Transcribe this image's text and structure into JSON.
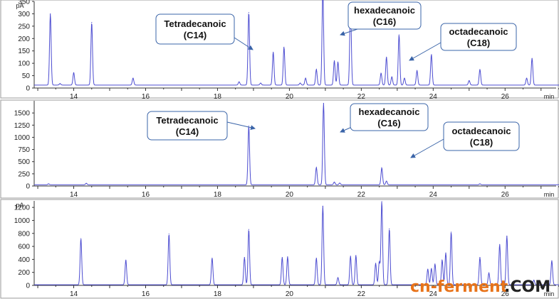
{
  "chart_data": [
    {
      "type": "line",
      "title": "",
      "xlabel": "min",
      "ylabel": "pA",
      "xlim": [
        12.9,
        27.5
      ],
      "ylim": [
        0,
        350
      ],
      "x_ticks": [
        14,
        16,
        18,
        20,
        22,
        24,
        26
      ],
      "y_ticks": [
        0,
        50,
        100,
        150,
        200,
        250,
        300,
        350
      ],
      "baseline": 12,
      "peaks": [
        {
          "rt": 13.35,
          "height": 300
        },
        {
          "rt": 13.62,
          "height": 18
        },
        {
          "rt": 14.0,
          "height": 62
        },
        {
          "rt": 14.5,
          "height": 265
        },
        {
          "rt": 15.65,
          "height": 40
        },
        {
          "rt": 18.6,
          "height": 25
        },
        {
          "rt": 18.87,
          "height": 305
        },
        {
          "rt": 19.2,
          "height": 20
        },
        {
          "rt": 19.55,
          "height": 145
        },
        {
          "rt": 19.85,
          "height": 165
        },
        {
          "rt": 20.3,
          "height": 20
        },
        {
          "rt": 20.45,
          "height": 40
        },
        {
          "rt": 20.75,
          "height": 75
        },
        {
          "rt": 20.93,
          "height": 395
        },
        {
          "rt": 21.25,
          "height": 110
        },
        {
          "rt": 21.35,
          "height": 105
        },
        {
          "rt": 21.7,
          "height": 340
        },
        {
          "rt": 22.55,
          "height": 60
        },
        {
          "rt": 22.7,
          "height": 125
        },
        {
          "rt": 22.85,
          "height": 45
        },
        {
          "rt": 23.05,
          "height": 215
        },
        {
          "rt": 23.2,
          "height": 40
        },
        {
          "rt": 23.55,
          "height": 70
        },
        {
          "rt": 23.95,
          "height": 135
        },
        {
          "rt": 25.0,
          "height": 30
        },
        {
          "rt": 25.3,
          "height": 75
        },
        {
          "rt": 26.6,
          "height": 40
        },
        {
          "rt": 26.75,
          "height": 120
        }
      ],
      "annotations": [
        {
          "line1": "Tetradecanoic",
          "line2": "(C14)"
        },
        {
          "line1": "hexadecanoic",
          "line2": "(C16)"
        },
        {
          "line1": "octadecanoic",
          "line2": "(C18)"
        }
      ]
    },
    {
      "type": "line",
      "title": "",
      "xlabel": "min",
      "ylabel": "",
      "xlim": [
        12.9,
        27.5
      ],
      "ylim": [
        0,
        1750
      ],
      "x_ticks": [
        14,
        16,
        18,
        20,
        22,
        24,
        26
      ],
      "y_ticks": [
        0,
        250,
        500,
        750,
        1000,
        1250,
        1500
      ],
      "baseline": 25,
      "peaks": [
        {
          "rt": 13.3,
          "height": 45
        },
        {
          "rt": 14.35,
          "height": 55
        },
        {
          "rt": 18.87,
          "height": 1230
        },
        {
          "rt": 20.75,
          "height": 380
        },
        {
          "rt": 20.95,
          "height": 1700
        },
        {
          "rt": 21.25,
          "height": 80
        },
        {
          "rt": 21.4,
          "height": 60
        },
        {
          "rt": 22.57,
          "height": 370
        },
        {
          "rt": 22.7,
          "height": 100
        },
        {
          "rt": 25.3,
          "height": 45
        }
      ],
      "annotations": [
        {
          "line1": "Tetradecanoic",
          "line2": "(C14)"
        },
        {
          "line1": "hexadecanoic",
          "line2": "(C16)"
        },
        {
          "line1": "octadecanoic",
          "line2": "(C18)"
        }
      ]
    },
    {
      "type": "line",
      "title": "",
      "xlabel": "min",
      "ylabel": "pA",
      "xlim": [
        12.9,
        27.5
      ],
      "ylim": [
        0,
        1300
      ],
      "x_ticks": [
        14,
        16,
        18,
        20,
        22,
        24,
        26
      ],
      "y_ticks": [
        0,
        200,
        400,
        600,
        800,
        1000,
        1200
      ],
      "baseline": 10,
      "peaks": [
        {
          "rt": 14.2,
          "height": 720
        },
        {
          "rt": 15.45,
          "height": 390
        },
        {
          "rt": 16.65,
          "height": 790
        },
        {
          "rt": 17.85,
          "height": 420
        },
        {
          "rt": 18.75,
          "height": 430
        },
        {
          "rt": 18.87,
          "height": 860
        },
        {
          "rt": 19.8,
          "height": 430
        },
        {
          "rt": 19.95,
          "height": 440
        },
        {
          "rt": 20.75,
          "height": 420
        },
        {
          "rt": 20.93,
          "height": 1220
        },
        {
          "rt": 21.35,
          "height": 120
        },
        {
          "rt": 21.7,
          "height": 450
        },
        {
          "rt": 21.85,
          "height": 460
        },
        {
          "rt": 22.4,
          "height": 340
        },
        {
          "rt": 22.5,
          "height": 360
        },
        {
          "rt": 22.57,
          "height": 1290
        },
        {
          "rt": 22.78,
          "height": 870
        },
        {
          "rt": 23.85,
          "height": 250
        },
        {
          "rt": 23.95,
          "height": 260
        },
        {
          "rt": 24.05,
          "height": 330
        },
        {
          "rt": 24.25,
          "height": 390
        },
        {
          "rt": 24.35,
          "height": 500
        },
        {
          "rt": 24.5,
          "height": 820
        },
        {
          "rt": 25.3,
          "height": 430
        },
        {
          "rt": 25.55,
          "height": 190
        },
        {
          "rt": 25.85,
          "height": 630
        },
        {
          "rt": 26.05,
          "height": 760
        },
        {
          "rt": 26.8,
          "height": 80
        },
        {
          "rt": 27.3,
          "height": 380
        }
      ]
    }
  ],
  "watermark": {
    "text_a": "cn-ferment",
    "text_b": ".COM",
    "color_a": "#e8731a",
    "color_b": "#222222"
  },
  "colors": {
    "trace": "#4d4dd1",
    "axis": "#333333",
    "box_border": "#3a64a8",
    "frame": "#999999"
  }
}
